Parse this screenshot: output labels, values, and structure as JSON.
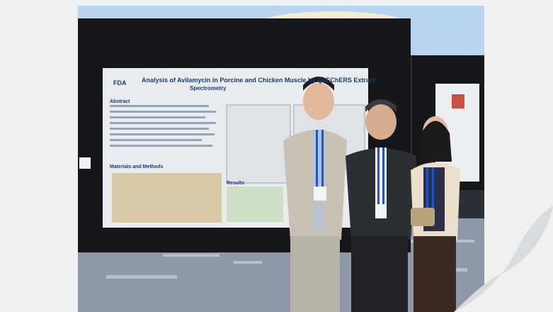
{
  "poster": {
    "logo_text": "FDA",
    "title": "Analysis of Avilamycin in Porcine and Chicken Muscle by QuEChERS Extraction and Liquid Chromatography/Tandem Mass",
    "title_line2": "Spectrometry",
    "section_abstract": "Abstract",
    "section_methods": "Materials and Methods",
    "section_results": "Results"
  },
  "colors": {
    "poster_bg": "#e9ecef",
    "suit_light": "#c9c2b4",
    "suit_dark": "#2b2e33",
    "lanyard": "#1f57c7",
    "ceiling": "#b9d4ee"
  }
}
